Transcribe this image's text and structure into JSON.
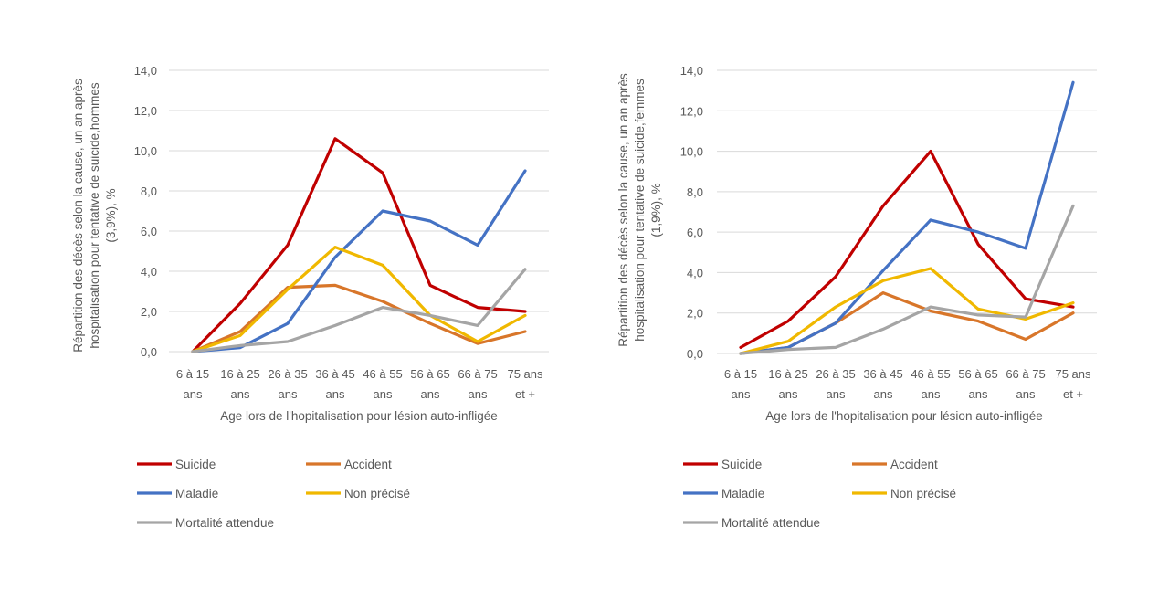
{
  "colors": {
    "Suicide": "#C00000",
    "Accident": "#D8762A",
    "Maladie": "#4472C4",
    "Non précisé": "#F0B800",
    "Mortalité attendue": "#A5A5A5",
    "grid": "#D9D9D9",
    "text": "#595959"
  },
  "chart_data": [
    {
      "type": "line",
      "ylabel_lines": [
        "Répartition des décès selon la cause, un an après",
        "hospitalisation pour tentative de suicide,hommes",
        "(3,9%), %"
      ],
      "xlabel": "Age  lors de l'hopitalisation pour lésion auto-infligée",
      "categories": [
        [
          "6 à 15",
          "ans"
        ],
        [
          "16 à 25",
          "ans"
        ],
        [
          "26 à 35",
          "ans"
        ],
        [
          "36 à 45",
          "ans"
        ],
        [
          "46 à 55",
          "ans"
        ],
        [
          "56 à 65",
          "ans"
        ],
        [
          "66 à 75",
          "ans"
        ],
        [
          "75 ans",
          "et +"
        ]
      ],
      "ylim": [
        0,
        14
      ],
      "yticks": [
        "0,0",
        "2,0",
        "4,0",
        "6,0",
        "8,0",
        "10,0",
        "12,0",
        "14,0"
      ],
      "grid": true,
      "legend_position": "bottom",
      "series": [
        {
          "name": "Suicide",
          "values": [
            0.0,
            2.4,
            5.3,
            10.6,
            8.9,
            3.3,
            2.2,
            2.0
          ]
        },
        {
          "name": "Accident",
          "values": [
            0.0,
            1.0,
            3.2,
            3.3,
            2.5,
            1.4,
            0.4,
            1.0
          ]
        },
        {
          "name": "Maladie",
          "values": [
            0.0,
            0.2,
            1.4,
            4.7,
            7.0,
            6.5,
            5.3,
            9.0
          ]
        },
        {
          "name": "Non précisé",
          "values": [
            0.0,
            0.8,
            3.1,
            5.2,
            4.3,
            1.8,
            0.5,
            1.8
          ]
        },
        {
          "name": "Mortalité attendue",
          "values": [
            0.0,
            0.3,
            0.5,
            1.3,
            2.2,
            1.8,
            1.3,
            4.1
          ]
        }
      ]
    },
    {
      "type": "line",
      "ylabel_lines": [
        "Répartition des décès selon la cause, un an après",
        "hospitalisation pour tentative de  suicide,femmes",
        "(1,9%), %"
      ],
      "xlabel": "Age  lors de l'hopitalisation pour lésion auto-infligée",
      "categories": [
        [
          "6 à 15",
          "ans"
        ],
        [
          "16 à 25",
          "ans"
        ],
        [
          "26 à 35",
          "ans"
        ],
        [
          "36 à 45",
          "ans"
        ],
        [
          "46 à 55",
          "ans"
        ],
        [
          "56 à 65",
          "ans"
        ],
        [
          "66 à 75",
          "ans"
        ],
        [
          "75 ans",
          "et +"
        ]
      ],
      "ylim": [
        0,
        14
      ],
      "yticks": [
        "0,0",
        "2,0",
        "4,0",
        "6,0",
        "8,0",
        "10,0",
        "12,0",
        "14,0"
      ],
      "grid": true,
      "legend_position": "bottom",
      "series": [
        {
          "name": "Suicide",
          "values": [
            0.3,
            1.6,
            3.8,
            7.3,
            10.0,
            5.4,
            2.7,
            2.3
          ]
        },
        {
          "name": "Accident",
          "values": [
            0.0,
            0.3,
            1.5,
            3.0,
            2.1,
            1.6,
            0.7,
            2.0
          ]
        },
        {
          "name": "Maladie",
          "values": [
            0.0,
            0.3,
            1.5,
            4.1,
            6.6,
            6.0,
            5.2,
            13.4
          ]
        },
        {
          "name": "Non précisé",
          "values": [
            0.0,
            0.6,
            2.3,
            3.6,
            4.2,
            2.2,
            1.7,
            2.5
          ]
        },
        {
          "name": "Mortalité attendue",
          "values": [
            0.0,
            0.2,
            0.3,
            1.2,
            2.3,
            1.9,
            1.8,
            7.3
          ]
        }
      ]
    }
  ]
}
